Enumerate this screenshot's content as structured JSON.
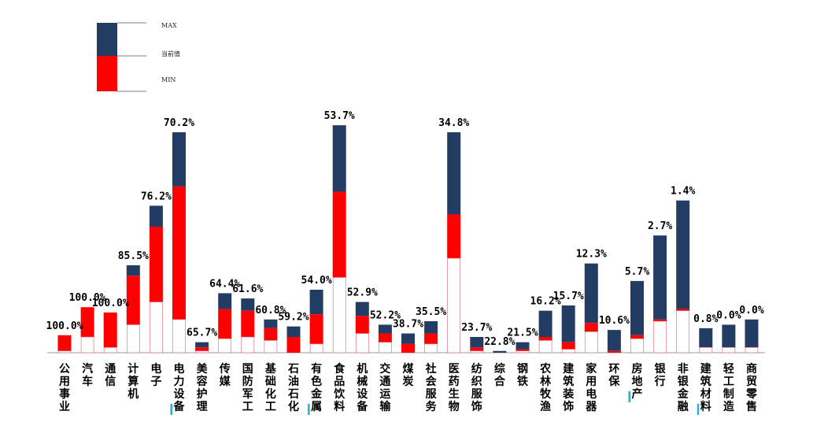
{
  "colors": {
    "max": "#233c63",
    "current": "#ff0000",
    "min": "#ffffff",
    "min_border": "#e06070",
    "highlight": "#2ab0c8",
    "axis": "#999999"
  },
  "chart_data": {
    "type": "bar",
    "style": "stacked floating range bars (min / current / max) per industry",
    "legend": {
      "placement": "top-left",
      "entries": [
        "MAX",
        "当前值",
        "MIN"
      ]
    },
    "categories": [
      "公用事业",
      "汽车",
      "通信",
      "计算机",
      "电子",
      "电力设备",
      "美容护理",
      "传媒",
      "国防军工",
      "基础化工",
      "石油石化",
      "有色金属",
      "食品饮料",
      "机械设备",
      "交通运输",
      "煤炭",
      "社会服务",
      "医药生物",
      "纺织服饰",
      "综合",
      "钢铁",
      "农林牧渔",
      "建筑装饰",
      "家用电器",
      "环保",
      "房地产",
      "银行",
      "非银金融",
      "建筑材料",
      "轻工制造",
      "商贸零售"
    ],
    "highlighted_categories": [
      "电力设备",
      "有色金属",
      "房地产",
      "建筑材料"
    ],
    "percentile_labels": [
      "100.0%",
      "100.0%",
      "100.0%",
      "85.5%",
      "76.2%",
      "70.2%",
      "65.7%",
      "64.4%",
      "61.6%",
      "60.8%",
      "59.2%",
      "54.0%",
      "53.7%",
      "52.9%",
      "52.2%",
      "38.7%",
      "35.5%",
      "34.8%",
      "23.7%",
      "22.8%",
      "21.5%",
      "16.2%",
      "15.7%",
      "12.3%",
      "10.6%",
      "5.7%",
      "2.7%",
      "1.4%",
      "0.8%",
      "0.0%",
      "0.0%"
    ],
    "series": [
      {
        "name": "MIN",
        "values": [
          1,
          9,
          3,
          16,
          29,
          19,
          1,
          8,
          9,
          7,
          0,
          5,
          43,
          11,
          6,
          0,
          5,
          54,
          1,
          0,
          1,
          7,
          2,
          12,
          0,
          8,
          18,
          24,
          3,
          3,
          3
        ]
      },
      {
        "name": "当前值",
        "values": [
          10,
          26,
          23,
          44,
          72,
          95,
          3,
          25,
          24,
          14,
          9,
          22,
          92,
          21,
          11,
          5,
          11,
          79,
          3,
          0,
          2,
          9,
          6,
          17,
          1,
          10,
          19,
          25,
          3,
          3,
          3
        ]
      },
      {
        "name": "MAX",
        "values": [
          10,
          26,
          23,
          50,
          84,
          126,
          6,
          34,
          31,
          19,
          15,
          36,
          130,
          29,
          16,
          11,
          18,
          126,
          9,
          1,
          6,
          24,
          27,
          51,
          13,
          41,
          67,
          87,
          14,
          16,
          19
        ]
      }
    ],
    "ylim": [
      0,
      135
    ],
    "xlabel": "",
    "ylabel": ""
  }
}
